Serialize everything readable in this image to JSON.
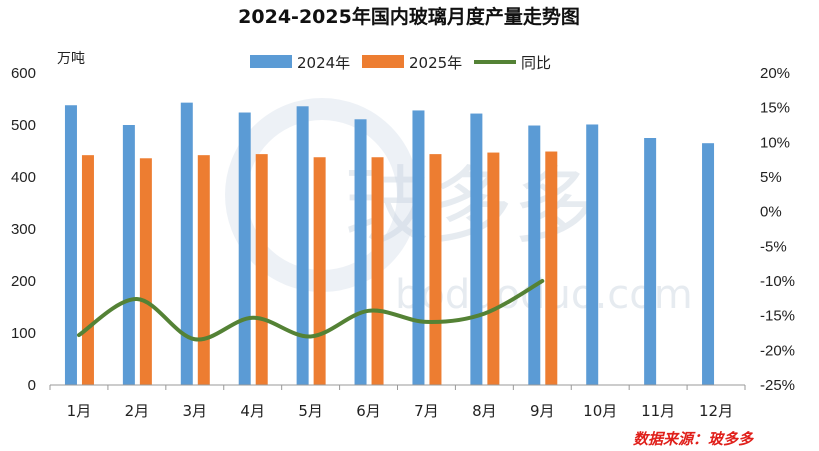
{
  "chart_data": {
    "type": "bar",
    "title": "2024-2025年国内玻璃月度产量走势图",
    "categories": [
      "1月",
      "2月",
      "3月",
      "4月",
      "5月",
      "6月",
      "7月",
      "8月",
      "9月",
      "10月",
      "11月",
      "12月"
    ],
    "y_unit": "万吨",
    "ylim": [
      0,
      600
    ],
    "y_ticks": [
      0,
      100,
      200,
      300,
      400,
      500,
      600
    ],
    "y2lim": [
      -25,
      20
    ],
    "y2_ticks": [
      "20%",
      "15%",
      "10%",
      "5%",
      "0%",
      "-5%",
      "-10%",
      "-15%",
      "-20%",
      "-25%"
    ],
    "grid": false,
    "legend_position": "top",
    "series": [
      {
        "name": "2024年",
        "type": "bar",
        "color": "#5b9bd5",
        "values": [
          538,
          500,
          543,
          524,
          536,
          511,
          528,
          522,
          499,
          501,
          475,
          465
        ]
      },
      {
        "name": "2025年",
        "type": "bar",
        "color": "#ed7d31",
        "values": [
          442,
          436,
          442,
          444,
          438,
          438,
          444,
          447,
          449,
          null,
          null,
          null
        ]
      },
      {
        "name": "同比",
        "type": "line",
        "axis": "right",
        "color": "#548235",
        "values": [
          -17.8,
          -12.6,
          -18.4,
          -15.3,
          -18.0,
          -14.3,
          -15.9,
          -14.7,
          -10.0,
          null,
          null,
          null
        ]
      }
    ]
  },
  "watermark": "玻多多",
  "watermark_sub": "boduoduo.com",
  "source": "数据来源：玻多多"
}
